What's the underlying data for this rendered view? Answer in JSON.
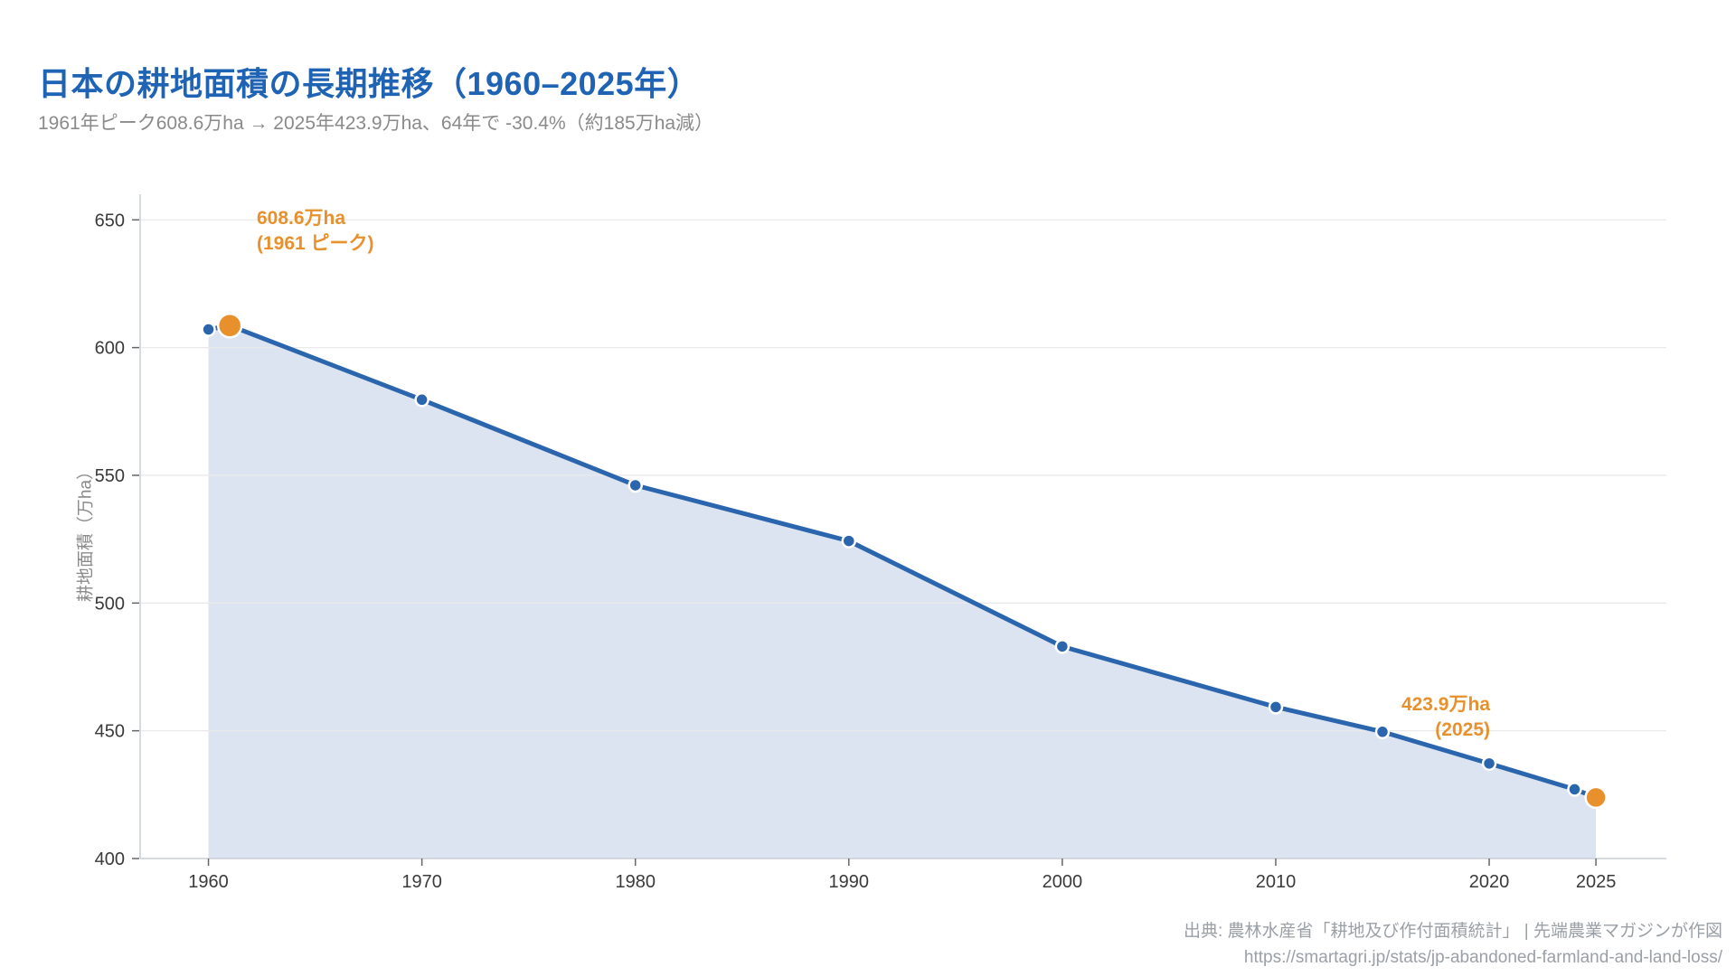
{
  "header": {
    "title": "日本の耕地面積の長期推移（1960–2025年）",
    "subtitle": "1961年ピーク608.6万ha → 2025年423.9万ha、64年で -30.4%（約185万ha減）"
  },
  "footer": {
    "source": "出典: 農林水産省「耕地及び作付面積統計」 | 先端農業マガジンが作図",
    "url": "https://smartagri.jp/stats/jp-abandoned-farmland-and-land-loss/"
  },
  "chart_data": {
    "type": "line",
    "title": "日本の耕地面積の長期推移（1960–2025年）",
    "xlabel": "",
    "ylabel": "耕地面積（万ha）",
    "series_name": "耕地面積",
    "x": [
      1960,
      1961,
      1970,
      1980,
      1990,
      2000,
      2010,
      2015,
      2020,
      2024,
      2025
    ],
    "values": [
      607.1,
      608.6,
      579.6,
      546.1,
      524.3,
      483.0,
      459.3,
      449.6,
      437.2,
      427.1,
      423.9
    ],
    "xticks": [
      1960,
      1970,
      1980,
      1990,
      2000,
      2010,
      2020,
      2025
    ],
    "yticks": [
      400,
      450,
      500,
      550,
      600,
      650
    ],
    "xlim": [
      1956.8,
      2028.3
    ],
    "ylim": [
      400,
      660
    ],
    "grid": "horizontal",
    "legend": "none",
    "area_fill": true,
    "highlight_points": [
      1961,
      2025
    ],
    "annotations": {
      "peak": {
        "line1": "608.6万ha",
        "line2": "(1961 ピーク)",
        "x": 1961,
        "y": 608.6
      },
      "final": {
        "line1": "423.9万ha",
        "line2": "(2025)",
        "x": 2025,
        "y": 423.9
      }
    },
    "colors": {
      "line": "#2b65ad",
      "marker": "#2b65ad",
      "highlight": "#e8912c",
      "area": "#dde4f1",
      "grid": "#e9e9e9",
      "axis": "#c9ced8",
      "tick_mark": "#666666",
      "tick_label": "#3a3a3a",
      "axis_title": "#8a8a8a",
      "title": "#1f63b5",
      "subtitle": "#8a8a8a",
      "source": "#9aa0a6"
    }
  }
}
